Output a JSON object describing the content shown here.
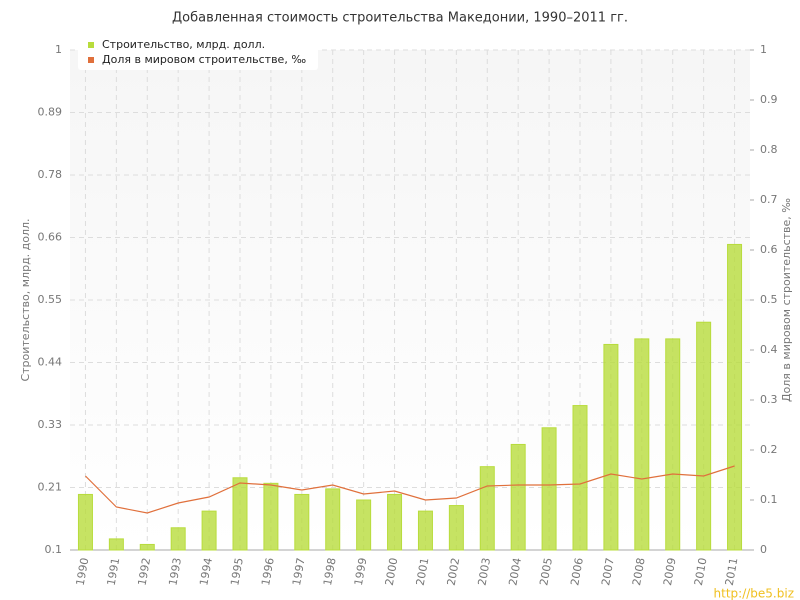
{
  "chart_data": {
    "type": "bar-line",
    "title": "Добавленная стоимость строительства Македонии, 1990–2011 гг.",
    "y_label": "Строительство, млрд. долл.",
    "y2_label": "Доля в мировом строительстве, ‰",
    "watermark": "http://be5.biz",
    "categories": [
      "1990",
      "1991",
      "1992",
      "1993",
      "1994",
      "1995",
      "1996",
      "1997",
      "1998",
      "1999",
      "2000",
      "2001",
      "2002",
      "2003",
      "2004",
      "2005",
      "2006",
      "2007",
      "2008",
      "2009",
      "2010",
      "2011"
    ],
    "series": [
      {
        "name": "Строительство, млрд. долл.",
        "color": "#b8dc3c",
        "type": "bar",
        "values": [
          0.2,
          0.12,
          0.11,
          0.14,
          0.17,
          0.23,
          0.22,
          0.2,
          0.21,
          0.19,
          0.2,
          0.17,
          0.18,
          0.25,
          0.29,
          0.32,
          0.36,
          0.47,
          0.48,
          0.48,
          0.51,
          0.65
        ]
      },
      {
        "name": "Доля в мировом строительстве, ‰",
        "color": "#e0703c",
        "type": "line",
        "axis": "y2",
        "values": [
          0.148,
          0.086,
          0.074,
          0.094,
          0.106,
          0.134,
          0.13,
          0.12,
          0.13,
          0.112,
          0.118,
          0.1,
          0.104,
          0.128,
          0.13,
          0.13,
          0.132,
          0.152,
          0.142,
          0.152,
          0.148,
          0.168
        ]
      }
    ],
    "ylim": [
      0.1,
      1
    ],
    "yticks": [
      0.1,
      {
        "value": 0.2125,
        "label": "0.21"
      },
      {
        "value": 0.325,
        "label": "0.33"
      },
      {
        "value": 0.4375,
        "label": "0.44"
      },
      0.55,
      {
        "value": 0.6625,
        "label": "0.66"
      },
      {
        "value": 0.775,
        "label": "0.78"
      },
      {
        "value": 0.8875,
        "label": "0.89"
      },
      1
    ],
    "y2lim": [
      0,
      1
    ],
    "y2ticks": [
      0,
      0.1,
      0.2,
      0.3,
      0.4,
      0.5,
      0.6,
      0.7,
      0.8,
      0.9,
      1
    ],
    "grid": true,
    "legend": "top-left"
  }
}
